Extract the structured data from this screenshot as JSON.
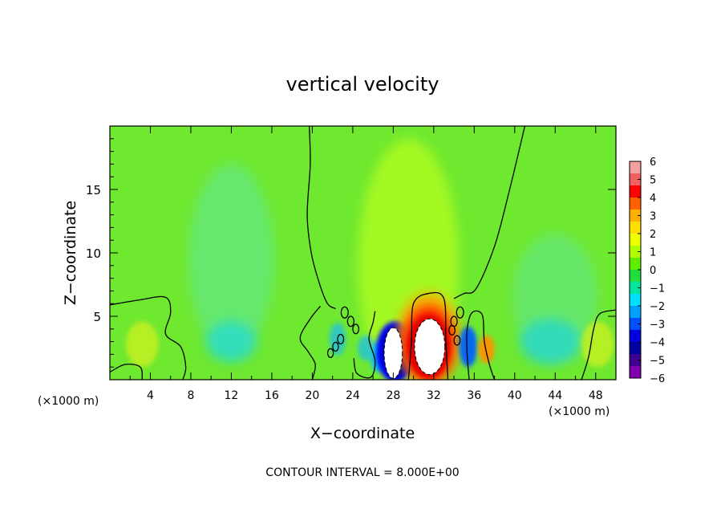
{
  "chart_data": {
    "type": "heatmap",
    "title": "vertical velocity",
    "xlabel": "X−coordinate",
    "ylabel": "Z−coordinate",
    "x_unit_left": "(×1000 m)",
    "x_unit_right": "(×1000 m)",
    "xlim": [
      0,
      50
    ],
    "ylim": [
      0,
      20
    ],
    "x_ticks": [
      4,
      8,
      12,
      16,
      20,
      24,
      28,
      32,
      36,
      40,
      44,
      48
    ],
    "x_tick_labels": [
      "4",
      "8",
      "12",
      "16",
      "20",
      "24",
      "28",
      "32",
      "36",
      "40",
      "44",
      "48"
    ],
    "y_ticks": [
      5,
      10,
      15
    ],
    "y_tick_labels": [
      "5",
      "10",
      "15"
    ],
    "contour_interval_text": "CONTOUR INTERVAL = 8.000E+00",
    "colorbar": {
      "labels": [
        "6",
        "5",
        "4",
        "3",
        "2",
        "1",
        "0",
        "−1",
        "−2",
        "−3",
        "−4",
        "−5",
        "−6"
      ],
      "colors": [
        "#f4a0a0",
        "#f06060",
        "#ff0000",
        "#ff6000",
        "#ffb000",
        "#ffe000",
        "#f0ff00",
        "#b0ff00",
        "#60ee00",
        "#20dd40",
        "#00e6a0",
        "#00e0ff",
        "#00a0ff",
        "#0050ff",
        "#0000e0",
        "#0000a0",
        "#400090",
        "#8000b0"
      ]
    },
    "field": {
      "background_color": "#6fe830",
      "blobs": [
        {
          "x": 12,
          "z": 9.5,
          "rx": 4.2,
          "rz": 7.5,
          "color": "#5ee8a0",
          "opacity": 0.55
        },
        {
          "x": 12,
          "z": 3,
          "rx": 2.5,
          "rz": 1.6,
          "color": "#28dcc8",
          "opacity": 0.85
        },
        {
          "x": 44,
          "z": 6.5,
          "rx": 4.2,
          "rz": 5,
          "color": "#5ee8a0",
          "opacity": 0.5
        },
        {
          "x": 43.5,
          "z": 3,
          "rx": 3,
          "rz": 1.8,
          "color": "#28d8c8",
          "opacity": 0.85
        },
        {
          "x": 29.5,
          "z": 9,
          "rx": 5,
          "rz": 10,
          "color": "#b8ff20",
          "opacity": 0.7
        },
        {
          "x": 3.2,
          "z": 2.8,
          "rx": 1.6,
          "rz": 1.8,
          "color": "#c8f020",
          "opacity": 0.8
        },
        {
          "x": 48.2,
          "z": 2.8,
          "rx": 1.6,
          "rz": 1.8,
          "color": "#c8f020",
          "opacity": 0.8
        },
        {
          "x": 26.5,
          "z": 1.8,
          "rx": 0.8,
          "rz": 1.2,
          "color": "#00c0ff",
          "opacity": 0.9
        },
        {
          "x": 28.2,
          "z": 2.2,
          "rx": 1.9,
          "rz": 2.4,
          "color": "#0000ff",
          "opacity": 1.0
        },
        {
          "x": 28.3,
          "z": 2.2,
          "rx": 1.4,
          "rz": 2.0,
          "color": "#0000a0",
          "opacity": 1.0
        },
        {
          "x": 31.5,
          "z": 3.3,
          "rx": 3.1,
          "rz": 3.6,
          "color": "#ffb000",
          "opacity": 0.9
        },
        {
          "x": 31.5,
          "z": 2.8,
          "rx": 2.6,
          "rz": 3.0,
          "color": "#ff2000",
          "opacity": 1.0
        },
        {
          "x": 31.5,
          "z": 2.6,
          "rx": 2.1,
          "rz": 2.5,
          "color": "#e00000",
          "opacity": 1.0
        },
        {
          "x": 35.4,
          "z": 2.6,
          "rx": 0.9,
          "rz": 1.6,
          "color": "#0060ff",
          "opacity": 0.95
        },
        {
          "x": 37.2,
          "z": 2.4,
          "rx": 0.8,
          "rz": 1.1,
          "color": "#ff9000",
          "opacity": 0.95
        },
        {
          "x": 22.5,
          "z": 3.2,
          "rx": 0.8,
          "rz": 1.3,
          "color": "#20c0e0",
          "opacity": 0.8
        },
        {
          "x": 25.3,
          "z": 2.5,
          "rx": 0.8,
          "rz": 1.0,
          "color": "#20c0e0",
          "opacity": 0.8
        }
      ],
      "white_cores": [
        {
          "x": 28.0,
          "z": 2.1,
          "rx": 0.9,
          "rz": 2.0
        },
        {
          "x": 31.6,
          "z": 2.6,
          "rx": 1.5,
          "rz": 2.2
        }
      ],
      "zero_contours": [
        [
          [
            19.7,
            20
          ],
          [
            19.8,
            17
          ],
          [
            19.5,
            13
          ],
          [
            19.9,
            10
          ],
          [
            20.7,
            7.6
          ],
          [
            21.5,
            6.0
          ],
          [
            22.3,
            5.6
          ]
        ],
        [
          [
            41.0,
            20
          ],
          [
            39.5,
            15
          ],
          [
            38.0,
            10.5
          ],
          [
            36.2,
            7.2
          ],
          [
            35.0,
            6.8
          ],
          [
            34.0,
            6.4
          ]
        ],
        [
          [
            0,
            5.9
          ],
          [
            3,
            6.3
          ],
          [
            5.5,
            6.5
          ],
          [
            6.0,
            5.3
          ],
          [
            5.5,
            3.6
          ],
          [
            7.0,
            2.6
          ],
          [
            7.5,
            1.0
          ],
          [
            7.2,
            0
          ]
        ],
        [
          [
            0,
            0.6
          ],
          [
            1.5,
            1.2
          ],
          [
            3.0,
            1.0
          ],
          [
            3.2,
            0
          ]
        ],
        [
          [
            20.8,
            5.8
          ],
          [
            19.8,
            4.8
          ],
          [
            18.8,
            3.3
          ],
          [
            19.6,
            2.2
          ],
          [
            20.3,
            1.2
          ],
          [
            20.0,
            0
          ]
        ],
        [
          [
            24.1,
            1.7
          ],
          [
            24.4,
            0.5
          ],
          [
            25.8,
            0.2
          ],
          [
            26.2,
            1.5
          ],
          [
            25.6,
            3.2
          ],
          [
            26.0,
            4.5
          ],
          [
            26.2,
            5.4
          ]
        ],
        [
          [
            29.5,
            0
          ],
          [
            29.8,
            3
          ],
          [
            30.0,
            6.0
          ],
          [
            31.5,
            6.8
          ],
          [
            33.0,
            6.4
          ],
          [
            33.2,
            3
          ],
          [
            33.4,
            0
          ]
        ],
        [
          [
            35.5,
            0
          ],
          [
            35.3,
            2
          ],
          [
            35.3,
            4.0
          ],
          [
            35.8,
            5.3
          ],
          [
            36.8,
            5.1
          ],
          [
            37.0,
            3.0
          ],
          [
            37.5,
            1.2
          ],
          [
            38.0,
            0
          ]
        ],
        [
          [
            46.6,
            0
          ],
          [
            47.3,
            1.8
          ],
          [
            47.8,
            4.0
          ],
          [
            48.4,
            5.2
          ],
          [
            50,
            5.5
          ]
        ]
      ],
      "small_loops": [
        {
          "x": 23.2,
          "z": 5.3,
          "r": 0.35
        },
        {
          "x": 23.8,
          "z": 4.6,
          "r": 0.32
        },
        {
          "x": 24.3,
          "z": 4.0,
          "r": 0.3
        },
        {
          "x": 22.8,
          "z": 3.2,
          "r": 0.3
        },
        {
          "x": 22.3,
          "z": 2.6,
          "r": 0.28
        },
        {
          "x": 21.8,
          "z": 2.1,
          "r": 0.28
        },
        {
          "x": 34.6,
          "z": 5.3,
          "r": 0.35
        },
        {
          "x": 34.0,
          "z": 4.6,
          "r": 0.32
        },
        {
          "x": 33.8,
          "z": 3.9,
          "r": 0.3
        },
        {
          "x": 34.3,
          "z": 3.1,
          "r": 0.3
        }
      ]
    }
  }
}
